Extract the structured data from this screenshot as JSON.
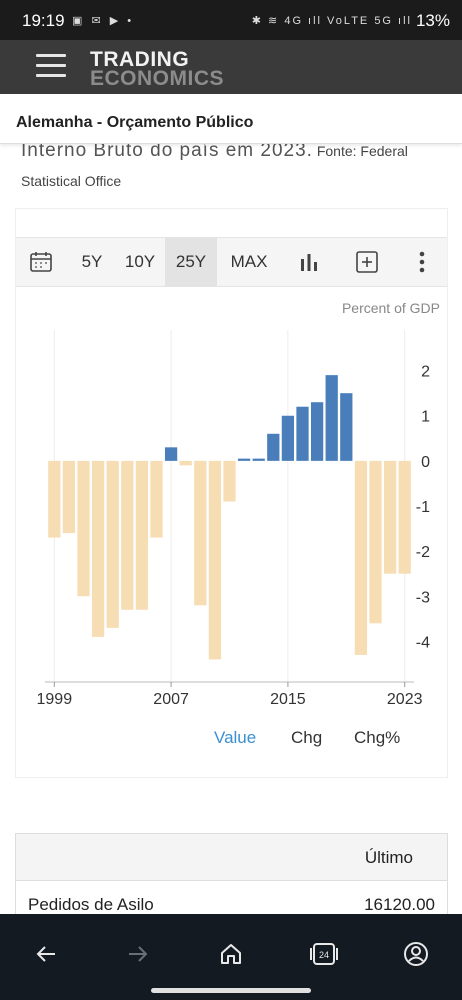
{
  "status": {
    "time": "19:19",
    "battery": "13%",
    "left_icons": "▣ ✉ ▶ •",
    "right_icons": "✱ ≋ 4G ıll VoLTE 5G ıll"
  },
  "brand": {
    "line1": "TRADING",
    "line2": "ECONOMICS"
  },
  "page": {
    "title": "Alemanha - Orçamento Público",
    "description_big": "Interno Bruto do país em 2023.",
    "description_rest": "Fonte: Federal",
    "description_line2": "Statistical Office"
  },
  "toolbar": {
    "ranges": [
      "5Y",
      "10Y",
      "25Y",
      "MAX"
    ],
    "selected": "25Y"
  },
  "legend": {
    "value": "Value",
    "chg": "Chg",
    "chgpct": "Chg%"
  },
  "chart_data": {
    "type": "bar",
    "unit": "Percent of GDP",
    "ylim": [
      -4.9,
      2.9
    ],
    "yticks": [
      "2",
      "1",
      "0",
      "-1",
      "-2",
      "-3",
      "-4"
    ],
    "ytick_values": [
      2,
      1,
      0,
      -1,
      -2,
      -3,
      -4
    ],
    "xtick_labels": [
      "1999",
      "2007",
      "2015",
      "2023"
    ],
    "x": [
      1999,
      2000,
      2001,
      2002,
      2003,
      2004,
      2005,
      2006,
      2007,
      2008,
      2009,
      2010,
      2011,
      2012,
      2013,
      2014,
      2015,
      2016,
      2017,
      2018,
      2019,
      2020,
      2021,
      2022,
      2023
    ],
    "values": [
      -1.7,
      -1.6,
      -3.0,
      -3.9,
      -3.7,
      -3.3,
      -3.3,
      -1.7,
      0.3,
      -0.1,
      -3.2,
      -4.4,
      -0.9,
      0.05,
      0.05,
      0.6,
      1.0,
      1.2,
      1.3,
      1.9,
      1.5,
      -4.3,
      -3.6,
      -2.5,
      -2.5
    ],
    "positive_color": "#4a7ebb",
    "negative_color": "#f6ddb3"
  },
  "table": {
    "header": "Último",
    "row_label": "Pedidos de Asilo",
    "row_value": "16120.00"
  },
  "navbar": {
    "icons": [
      "back-arrow-icon",
      "forward-arrow-icon",
      "home-icon",
      "tabs-icon",
      "account-icon"
    ]
  }
}
